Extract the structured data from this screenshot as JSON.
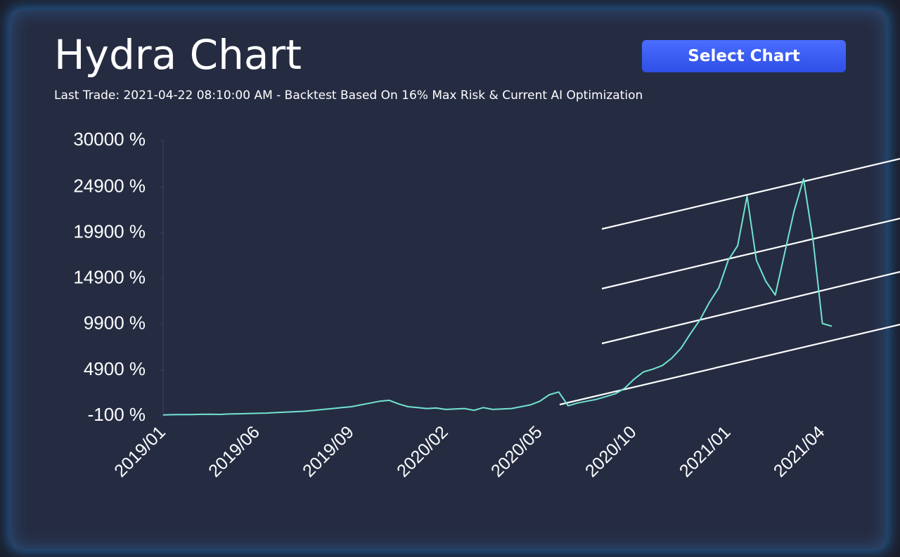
{
  "button": "Select Chart",
  "chart_data": {
    "type": "line",
    "title": "Hydra Chart",
    "subtitle": "Last Trade: 2021-04-22 08:10:00 AM - Backtest Based On 16% Max Risk & Current AI Optimization",
    "categories": [
      "2019/01",
      null,
      null,
      null,
      null,
      null,
      null,
      null,
      null,
      null,
      "2019/06",
      null,
      null,
      null,
      null,
      null,
      null,
      null,
      null,
      null,
      "2019/09",
      null,
      null,
      null,
      null,
      null,
      null,
      null,
      null,
      null,
      "2020/02",
      null,
      null,
      null,
      null,
      null,
      null,
      null,
      null,
      null,
      "2020/05",
      null,
      null,
      null,
      null,
      null,
      null,
      null,
      null,
      null,
      "2020/10",
      null,
      null,
      null,
      null,
      null,
      null,
      null,
      null,
      null,
      "2021/01",
      null,
      null,
      null,
      null,
      null,
      null,
      null,
      null,
      null,
      "2021/04",
      null
    ],
    "series": [
      {
        "color": "#72e3d2",
        "values": [
          0,
          20,
          40,
          30,
          60,
          80,
          50,
          100,
          120,
          150,
          180,
          200,
          250,
          300,
          350,
          400,
          500,
          600,
          700,
          800,
          900,
          1100,
          1300,
          1500,
          1600,
          1200,
          900,
          800,
          700,
          750,
          600,
          650,
          700,
          500,
          800,
          600,
          650,
          700,
          900,
          1100,
          1500,
          2200,
          2500,
          1000,
          1300,
          1500,
          1700,
          2000,
          2300,
          2900,
          3900,
          4700,
          5000,
          5400,
          6200,
          7300,
          8900,
          10400,
          12300,
          13900,
          16900,
          18500,
          23900,
          16900,
          14600,
          13100,
          17700,
          22300,
          25800,
          19200,
          10000,
          9700
        ]
      }
    ],
    "ylim": [
      -100,
      30000
    ],
    "yticks": [
      {
        "value": -100,
        "label": "-100 %"
      },
      {
        "value": 4900,
        "label": "4900 %"
      },
      {
        "value": 9900,
        "label": "9900 %"
      },
      {
        "value": 14900,
        "label": "14900 %"
      },
      {
        "value": 19900,
        "label": "19900 %"
      },
      {
        "value": 24900,
        "label": "24900 %"
      },
      {
        "value": 30000,
        "label": "30000 %"
      }
    ],
    "grid": false
  }
}
